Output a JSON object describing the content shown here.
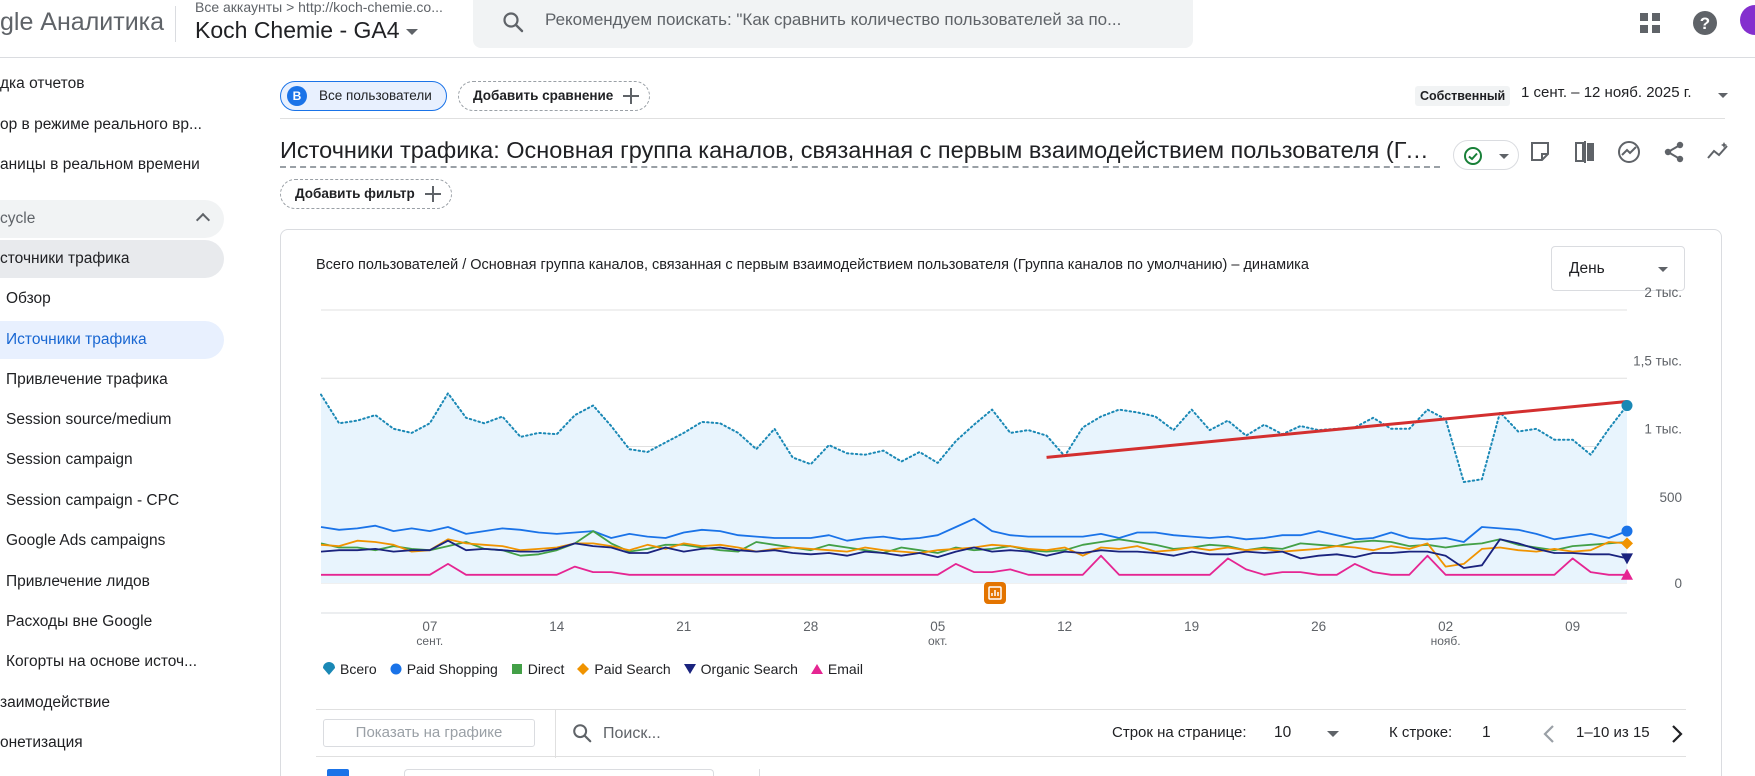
{
  "app": {
    "logo_text": "gle Аналитика",
    "account_crumb": "Все аккаунты > http://koch-chemie.co...",
    "property_name": "Koch Chemie - GA4",
    "search_placeholder": "Рекомендуем поискать: \"Как сравнить количество пользователей за по...",
    "icons": [
      "apps-grid-icon",
      "help-icon"
    ],
    "avatar_color": "#8430ce"
  },
  "sidebar": {
    "items": [
      {
        "label": "дка отчетов"
      },
      {
        "label": "ор в режиме реального вр..."
      },
      {
        "label": "аницы в реальном времени"
      },
      {
        "label": "cycle"
      },
      {
        "label": "сточники трафика"
      },
      {
        "label": "Обзор"
      },
      {
        "label": "Источники трафика"
      },
      {
        "label": "Привлечение трафика"
      },
      {
        "label": "Session source/medium"
      },
      {
        "label": "Session campaign"
      },
      {
        "label": "Session campaign - CPC"
      },
      {
        "label": "Google Ads campaigns"
      },
      {
        "label": "Привлечение лидов"
      },
      {
        "label": "Расходы вне Google"
      },
      {
        "label": "Когорты на основе источ..."
      },
      {
        "label": "заимодействие"
      },
      {
        "label": "онетизация"
      }
    ]
  },
  "header": {
    "segment_badge": "B",
    "segment_label": "Все пользователи",
    "add_comparison": "Добавить сравнение",
    "date_badge": "Собственный",
    "date_range": "1 сент. – 12 нояб. 2025 г.",
    "report_title": "Источники трафика: Основная группа каналов, связанная с первым взаимодействием пользователя (Группа каналов по умолчанию)",
    "add_filter": "Добавить фильтр",
    "accent_color": "#1a73e8"
  },
  "chart_card": {
    "title": "Всего пользователей / Основная группа каналов, связанная с первым взаимодействием пользователя (Группа каналов по умолчанию) – динамика",
    "granularity": "День",
    "anomaly_icon": "insights-marker-icon"
  },
  "chart_data": {
    "type": "line",
    "ylim": [
      0,
      2000
    ],
    "y_ticks": [
      {
        "value": 2000,
        "label": "2 тыс."
      },
      {
        "value": 1500,
        "label": "1,5 тыс."
      },
      {
        "value": 1000,
        "label": "1 тыс."
      },
      {
        "value": 500,
        "label": "500"
      },
      {
        "value": 0,
        "label": "0"
      }
    ],
    "x_ticks": [
      {
        "day": 7,
        "label": "07",
        "sub": "сент."
      },
      {
        "day": 14,
        "label": "14",
        "sub": ""
      },
      {
        "day": 21,
        "label": "21",
        "sub": ""
      },
      {
        "day": 28,
        "label": "28",
        "sub": ""
      },
      {
        "day": 35,
        "label": "05",
        "sub": "окт."
      },
      {
        "day": 42,
        "label": "12",
        "sub": ""
      },
      {
        "day": 49,
        "label": "19",
        "sub": ""
      },
      {
        "day": 56,
        "label": "26",
        "sub": ""
      },
      {
        "day": 63,
        "label": "02",
        "sub": "нояб."
      },
      {
        "day": 70,
        "label": "09",
        "sub": ""
      }
    ],
    "x_domain": [
      1,
      73
    ],
    "series": [
      {
        "name": "Всего",
        "color": "#1a88b5",
        "style": "dotted",
        "area": true,
        "marker": "pin",
        "values": [
          1380,
          1170,
          1190,
          1230,
          1130,
          1100,
          1170,
          1390,
          1210,
          1170,
          1220,
          1070,
          1100,
          1090,
          1230,
          1300,
          1150,
          980,
          960,
          1030,
          1100,
          1180,
          1170,
          1100,
          980,
          1130,
          920,
          870,
          1010,
          950,
          940,
          970,
          890,
          960,
          880,
          1040,
          1160,
          1270,
          1100,
          1120,
          1080,
          930,
          1140,
          1220,
          1270,
          1250,
          1220,
          1120,
          1270,
          1120,
          1190,
          1080,
          1160,
          1090,
          1150,
          1120,
          1130,
          1140,
          1210,
          1130,
          1130,
          1270,
          1200,
          740,
          760,
          1250,
          1110,
          1130,
          1050,
          1050,
          940,
          1130,
          1300
        ]
      },
      {
        "name": "Paid Shopping",
        "color": "#1a73e8",
        "style": "solid",
        "marker": "circle",
        "values": [
          410,
          390,
          400,
          420,
          380,
          400,
          380,
          410,
          360,
          380,
          400,
          390,
          370,
          360,
          370,
          380,
          330,
          360,
          340,
          330,
          370,
          390,
          380,
          350,
          340,
          330,
          330,
          330,
          350,
          310,
          330,
          340,
          320,
          330,
          350,
          410,
          470,
          380,
          350,
          340,
          340,
          340,
          340,
          360,
          330,
          370,
          370,
          350,
          340,
          330,
          340,
          320,
          330,
          350,
          350,
          380,
          350,
          320,
          330,
          370,
          330,
          320,
          330,
          300,
          410,
          400,
          390,
          360,
          320,
          340,
          360,
          330,
          380
        ]
      },
      {
        "name": "Direct",
        "color": "#43a047",
        "style": "solid",
        "marker": "square",
        "values": [
          290,
          260,
          260,
          240,
          270,
          250,
          240,
          270,
          300,
          250,
          240,
          200,
          210,
          240,
          290,
          380,
          290,
          230,
          250,
          280,
          280,
          260,
          240,
          230,
          300,
          280,
          260,
          240,
          280,
          260,
          240,
          220,
          260,
          240,
          220,
          260,
          240,
          250,
          270,
          240,
          230,
          240,
          280,
          300,
          320,
          300,
          280,
          250,
          260,
          280,
          270,
          240,
          260,
          250,
          290,
          280,
          270,
          300,
          310,
          300,
          270,
          280,
          260,
          280,
          290,
          320,
          280,
          260,
          240,
          270,
          280,
          290,
          300
        ]
      },
      {
        "name": "Paid Search",
        "color": "#f09300",
        "style": "solid",
        "marker": "diamond",
        "values": [
          280,
          270,
          310,
          300,
          280,
          230,
          240,
          320,
          290,
          280,
          270,
          240,
          250,
          260,
          290,
          290,
          270,
          240,
          280,
          250,
          290,
          270,
          280,
          260,
          230,
          250,
          260,
          250,
          240,
          230,
          260,
          240,
          230,
          220,
          240,
          250,
          260,
          280,
          270,
          250,
          240,
          260,
          200,
          260,
          250,
          270,
          230,
          240,
          260,
          240,
          260,
          240,
          250,
          230,
          240,
          250,
          270,
          260,
          240,
          270,
          250,
          290,
          120,
          140,
          250,
          260,
          240,
          230,
          250,
          230,
          240,
          300,
          290
        ]
      },
      {
        "name": "Organic Search",
        "color": "#1a237e",
        "style": "solid",
        "marker": "triangle-down",
        "values": [
          230,
          240,
          240,
          250,
          230,
          240,
          240,
          310,
          240,
          250,
          240,
          230,
          230,
          250,
          290,
          270,
          260,
          220,
          220,
          260,
          230,
          250,
          260,
          240,
          230,
          240,
          220,
          210,
          220,
          200,
          230,
          220,
          200,
          220,
          190,
          230,
          260,
          230,
          240,
          230,
          200,
          230,
          220,
          240,
          230,
          230,
          220,
          200,
          230,
          210,
          210,
          230,
          220,
          230,
          180,
          200,
          210,
          190,
          220,
          220,
          230,
          230,
          200,
          110,
          130,
          320,
          290,
          250,
          220,
          220,
          210,
          210,
          180
        ]
      },
      {
        "name": "Email",
        "color": "#e52592",
        "style": "solid",
        "marker": "triangle-up",
        "values": [
          60,
          60,
          60,
          60,
          60,
          60,
          60,
          140,
          60,
          60,
          60,
          60,
          60,
          60,
          120,
          80,
          80,
          60,
          60,
          60,
          60,
          60,
          60,
          60,
          60,
          60,
          60,
          60,
          60,
          60,
          60,
          60,
          60,
          60,
          60,
          140,
          80,
          80,
          100,
          60,
          60,
          60,
          60,
          200,
          60,
          60,
          60,
          60,
          60,
          60,
          180,
          100,
          60,
          80,
          80,
          60,
          60,
          140,
          80,
          60,
          60,
          200,
          60,
          60,
          60,
          60,
          60,
          60,
          60,
          180,
          80,
          60,
          60
        ]
      }
    ],
    "annotation": {
      "type": "trend-line",
      "color": "#d32f2f",
      "from": {
        "day": 41,
        "value": 920
      },
      "to": {
        "day": 73,
        "value": 1330
      }
    }
  },
  "table": {
    "show_on_chart": "Показать на графике",
    "search_placeholder": "Поиск...",
    "rows_label": "Строк на странице:",
    "rows_value": "10",
    "goto_label": "К строке:",
    "goto_value": "1",
    "page_range": "1–10 из 15"
  }
}
